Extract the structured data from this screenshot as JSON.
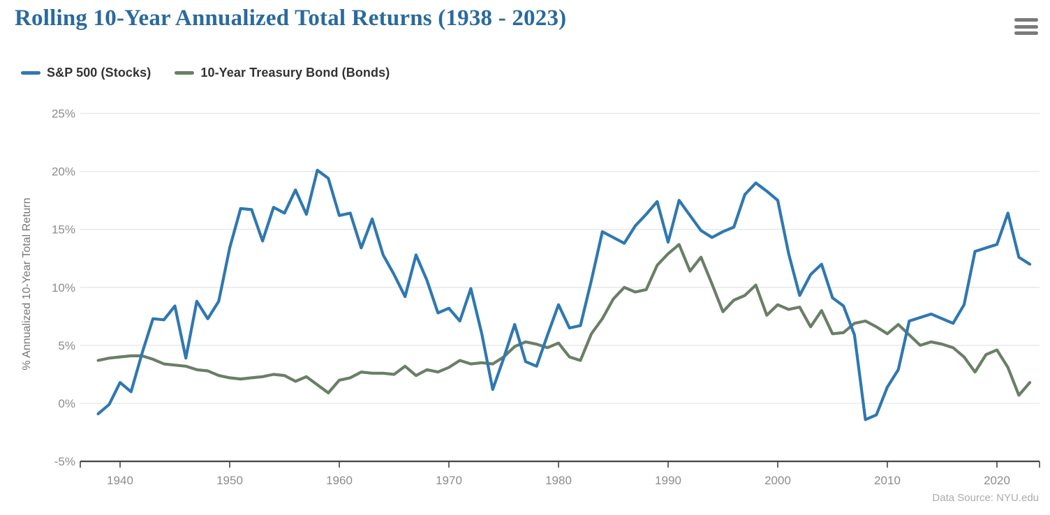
{
  "header": {
    "title": "Rolling 10-Year Annualized Total Returns (1938 - 2023)"
  },
  "menu": {
    "icon": "hamburger-menu-icon"
  },
  "footer": {
    "source": "Data Source: NYU.edu"
  },
  "colors": {
    "title": "#2a6a9d",
    "stocks_line": "#2f78b1",
    "bonds_line": "#697f66",
    "grid": "#e6e6e6",
    "axis": "#444444",
    "tick_label": "#8c8c8c"
  },
  "chart_data": {
    "type": "line",
    "title": "Rolling 10-Year Annualized Total Returns (1938 - 2023)",
    "ylabel": "% Annualized 10-Year Total Return",
    "xlabel": "",
    "grid": true,
    "legend_position": "top-left",
    "ylim": [
      -5,
      25
    ],
    "xlim": [
      1937,
      2024
    ],
    "yticks": [
      -5,
      0,
      5,
      10,
      15,
      20,
      25
    ],
    "ytick_suffix": "%",
    "xticks": [
      1940,
      1950,
      1960,
      1970,
      1980,
      1990,
      2000,
      2010,
      2020
    ],
    "x": [
      1938,
      1939,
      1940,
      1941,
      1942,
      1943,
      1944,
      1945,
      1946,
      1947,
      1948,
      1949,
      1950,
      1951,
      1952,
      1953,
      1954,
      1955,
      1956,
      1957,
      1958,
      1959,
      1960,
      1961,
      1962,
      1963,
      1964,
      1965,
      1966,
      1967,
      1968,
      1969,
      1970,
      1971,
      1972,
      1973,
      1974,
      1975,
      1976,
      1977,
      1978,
      1979,
      1980,
      1981,
      1982,
      1983,
      1984,
      1985,
      1986,
      1987,
      1988,
      1989,
      1990,
      1991,
      1992,
      1993,
      1994,
      1995,
      1996,
      1997,
      1998,
      1999,
      2000,
      2001,
      2002,
      2003,
      2004,
      2005,
      2006,
      2007,
      2008,
      2009,
      2010,
      2011,
      2012,
      2013,
      2014,
      2015,
      2016,
      2017,
      2018,
      2019,
      2020,
      2021,
      2022,
      2023
    ],
    "series": [
      {
        "name": "S&P 500 (Stocks)",
        "color": "#2f78b1",
        "values": [
          -0.9,
          -0.1,
          1.8,
          1.0,
          4.3,
          7.3,
          7.2,
          8.4,
          3.9,
          8.8,
          7.3,
          8.8,
          13.4,
          16.8,
          16.7,
          14.0,
          16.9,
          16.4,
          18.4,
          16.3,
          20.1,
          19.4,
          16.2,
          16.4,
          13.4,
          15.9,
          12.8,
          11.1,
          9.2,
          12.8,
          10.6,
          7.8,
          8.2,
          7.1,
          9.9,
          6.0,
          1.2,
          3.9,
          6.8,
          3.6,
          3.2,
          5.9,
          8.5,
          6.5,
          6.7,
          10.6,
          14.8,
          14.3,
          13.8,
          15.3,
          16.3,
          17.4,
          13.9,
          17.5,
          16.2,
          14.9,
          14.3,
          14.8,
          15.2,
          18.0,
          19.0,
          18.3,
          17.5,
          12.9,
          9.3,
          11.1,
          12.0,
          9.1,
          8.4,
          5.9,
          -1.4,
          -1.0,
          1.4,
          2.9,
          7.1,
          7.4,
          7.7,
          7.3,
          6.9,
          8.5,
          13.1,
          13.4,
          13.7,
          16.4,
          12.6,
          12.0
        ]
      },
      {
        "name": "10-Year Treasury Bond (Bonds)",
        "color": "#697f66",
        "values": [
          3.7,
          3.9,
          4.0,
          4.1,
          4.1,
          3.8,
          3.4,
          3.3,
          3.2,
          2.9,
          2.8,
          2.4,
          2.2,
          2.1,
          2.2,
          2.3,
          2.5,
          2.4,
          1.9,
          2.3,
          1.6,
          0.9,
          2.0,
          2.2,
          2.7,
          2.6,
          2.6,
          2.5,
          3.2,
          2.4,
          2.9,
          2.7,
          3.1,
          3.7,
          3.4,
          3.5,
          3.4,
          4.0,
          4.9,
          5.3,
          5.1,
          4.8,
          5.2,
          4.0,
          3.7,
          6.0,
          7.3,
          9.0,
          10.0,
          9.6,
          9.8,
          11.9,
          12.9,
          13.7,
          11.4,
          12.6,
          10.3,
          7.9,
          8.9,
          9.3,
          10.2,
          7.6,
          8.5,
          8.1,
          8.3,
          6.6,
          8.0,
          6.0,
          6.1,
          6.9,
          7.1,
          6.6,
          6.0,
          6.8,
          5.9,
          5.0,
          5.3,
          5.1,
          4.8,
          4.0,
          2.7,
          4.2,
          4.6,
          3.1,
          0.7,
          1.8
        ]
      }
    ]
  }
}
